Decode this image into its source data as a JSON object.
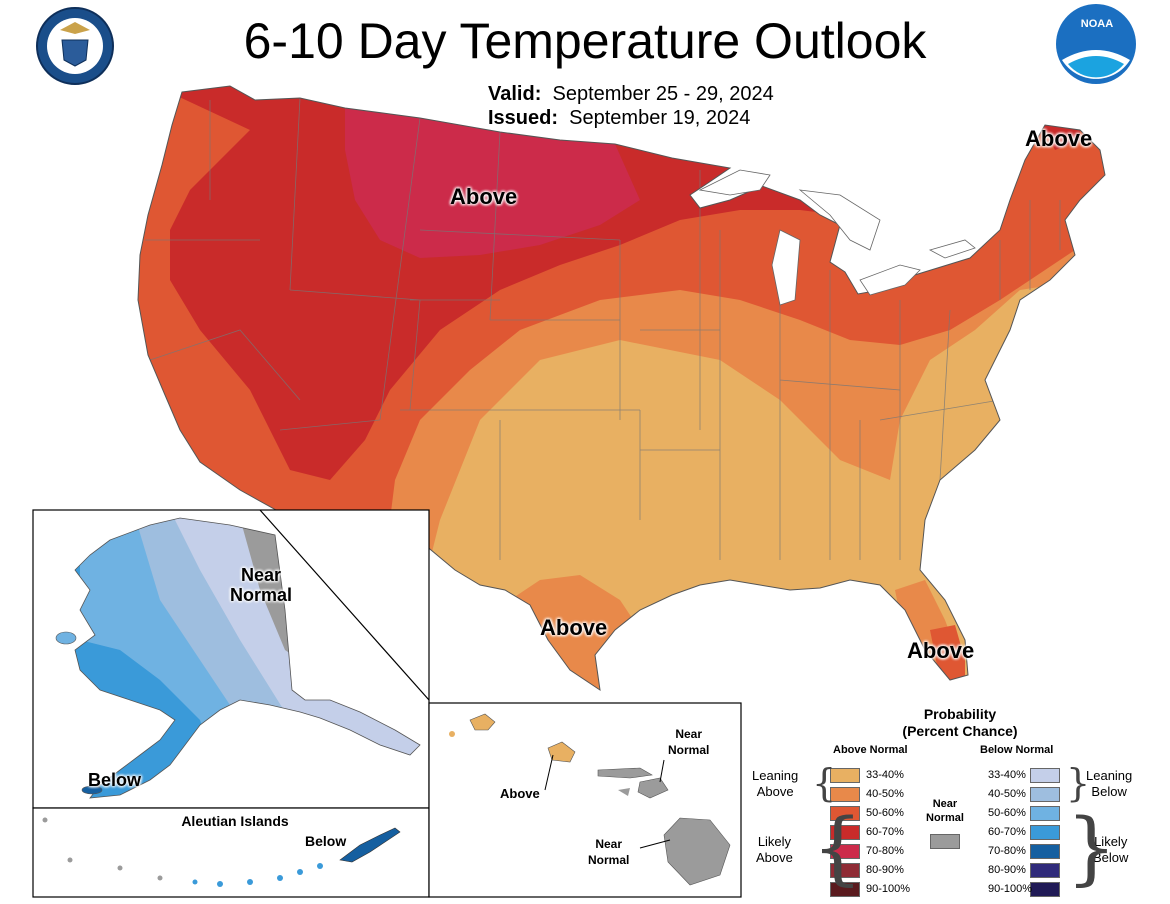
{
  "title": "6-10 Day Temperature Outlook",
  "valid_label": "Valid:",
  "valid_value": "September 25 - 29, 2024",
  "issued_label": "Issued:",
  "issued_value": "September 19, 2024",
  "logos": {
    "left": "department-of-commerce-seal",
    "right": "NOAA"
  },
  "noaa_text": "NOAA",
  "map_labels": {
    "above_north": "Above",
    "above_maine": "Above",
    "above_texas": "Above",
    "above_florida": "Above",
    "ak_near_normal": "Near\nNormal",
    "ak_below": "Below",
    "aleutian_title": "Aleutian Islands",
    "aleutian_below": "Below",
    "hi_near_normal_top": "Near\nNormal",
    "hi_above": "Above",
    "hi_near_normal_bottom": "Near\nNormal"
  },
  "legend": {
    "title": "Probability\n(Percent Chance)",
    "above_header": "Above Normal",
    "below_header": "Below Normal",
    "near_normal_label": "Near\nNormal",
    "leaning_above": "Leaning\nAbove",
    "likely_above": "Likely\nAbove",
    "leaning_below": "Leaning\nBelow",
    "likely_below": "Likely\nBelow",
    "above_items": [
      {
        "label": "33-40%",
        "color": "#e8b062"
      },
      {
        "label": "40-50%",
        "color": "#e8894a"
      },
      {
        "label": "50-60%",
        "color": "#df5733"
      },
      {
        "label": "60-70%",
        "color": "#c92b2a"
      },
      {
        "label": "70-80%",
        "color": "#cc2b4a"
      },
      {
        "label": "80-90%",
        "color": "#8f2b35"
      },
      {
        "label": "90-100%",
        "color": "#5a1a1e"
      }
    ],
    "below_items": [
      {
        "label": "33-40%",
        "color": "#c4cfe9"
      },
      {
        "label": "40-50%",
        "color": "#9ebedf"
      },
      {
        "label": "50-60%",
        "color": "#6fb2e2"
      },
      {
        "label": "60-70%",
        "color": "#3a9ad9"
      },
      {
        "label": "70-80%",
        "color": "#155fa0"
      },
      {
        "label": "80-90%",
        "color": "#2f2a7a"
      },
      {
        "label": "90-100%",
        "color": "#201a56"
      }
    ],
    "near_normal_color": "#9b9b9b"
  }
}
